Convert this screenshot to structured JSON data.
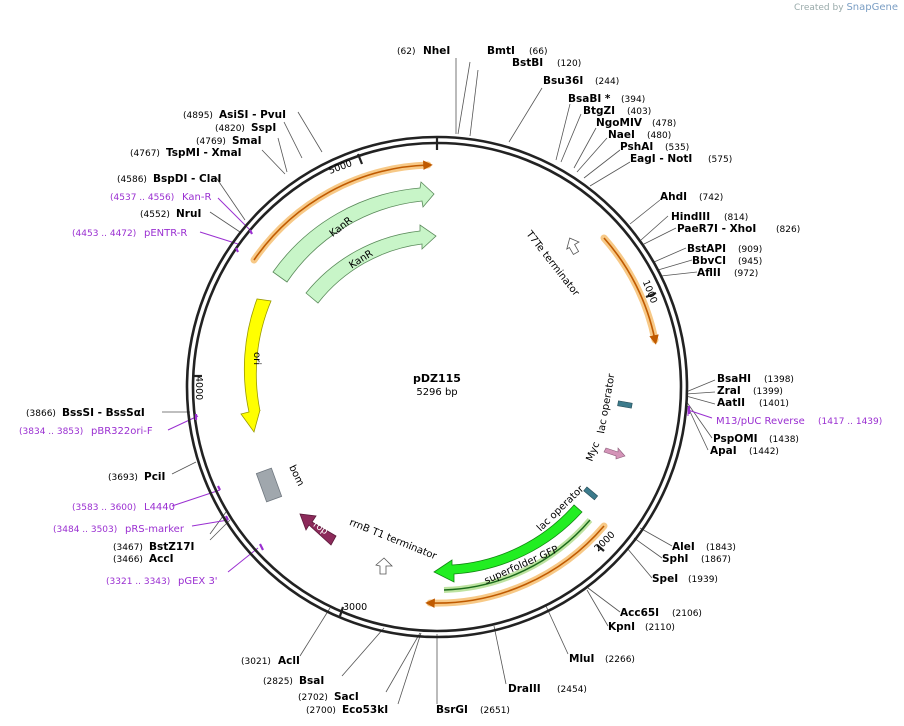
{
  "credit": {
    "prefix": "Created by",
    "brand": "SnapGene"
  },
  "plasmid": {
    "name": "pDZ115",
    "size": "5296 bp"
  },
  "ticks": [
    "1000",
    "2000",
    "3000",
    "4000",
    "5000"
  ],
  "enzymes": [
    {
      "name": "NheI",
      "pos": "(62)"
    },
    {
      "name": "BmtI",
      "pos": "(66)"
    },
    {
      "name": "BstBI",
      "pos": "(120)"
    },
    {
      "name": "Bsu36I",
      "pos": "(244)"
    },
    {
      "name": "BsaBI *",
      "pos": "(394)"
    },
    {
      "name": "BtgZI",
      "pos": "(403)"
    },
    {
      "name": "NgoMIV",
      "pos": "(478)"
    },
    {
      "name": "NaeI",
      "pos": "(480)"
    },
    {
      "name": "PshAI",
      "pos": "(535)"
    },
    {
      "name": "EagI - NotI",
      "pos": "(575)"
    },
    {
      "name": "AhdI",
      "pos": "(742)"
    },
    {
      "name": "HindIII",
      "pos": "(814)"
    },
    {
      "name": "PaeR7I - XhoI",
      "pos": "(826)"
    },
    {
      "name": "BstAPI",
      "pos": "(909)"
    },
    {
      "name": "BbvCI",
      "pos": "(945)"
    },
    {
      "name": "AflII",
      "pos": "(972)"
    },
    {
      "name": "BsaHI",
      "pos": "(1398)"
    },
    {
      "name": "ZraI",
      "pos": "(1399)"
    },
    {
      "name": "AatII",
      "pos": "(1401)"
    },
    {
      "name": "PspOMI",
      "pos": "(1438)"
    },
    {
      "name": "ApaI",
      "pos": "(1442)"
    },
    {
      "name": "AleI",
      "pos": "(1843)"
    },
    {
      "name": "SphI",
      "pos": "(1867)"
    },
    {
      "name": "SpeI",
      "pos": "(1939)"
    },
    {
      "name": "Acc65I",
      "pos": "(2106)"
    },
    {
      "name": "KpnI",
      "pos": "(2110)"
    },
    {
      "name": "MluI",
      "pos": "(2266)"
    },
    {
      "name": "DraIII",
      "pos": "(2454)"
    },
    {
      "name": "BsrGI",
      "pos": "(2651)"
    },
    {
      "name": "Eco53kI",
      "pos": "(2700)"
    },
    {
      "name": "SacI",
      "pos": "(2702)"
    },
    {
      "name": "BsaI",
      "pos": "(2825)"
    },
    {
      "name": "AclI",
      "pos": "(3021)"
    },
    {
      "name": "AccI",
      "pos": "(3466)"
    },
    {
      "name": "BstZ17I",
      "pos": "(3467)"
    },
    {
      "name": "PciI",
      "pos": "(3693)"
    },
    {
      "name": "BssSI - BssSαI",
      "pos": "(3866)"
    },
    {
      "name": "NruI",
      "pos": "(4552)"
    },
    {
      "name": "BspDI - ClaI",
      "pos": "(4586)"
    },
    {
      "name": "TspMI - XmaI",
      "pos": "(4767)"
    },
    {
      "name": "SmaI",
      "pos": "(4769)"
    },
    {
      "name": "SspI",
      "pos": "(4820)"
    },
    {
      "name": "AsiSI - PvuI",
      "pos": "(4895)"
    }
  ],
  "primers": [
    {
      "name": "M13/pUC Reverse",
      "range": "(1417 .. 1439)"
    },
    {
      "name": "pGEX 3'",
      "range": "(3321 .. 3343)"
    },
    {
      "name": "pRS-marker",
      "range": "(3484 .. 3503)"
    },
    {
      "name": "L4440",
      "range": "(3583 .. 3600)"
    },
    {
      "name": "pBR322ori-F",
      "range": "(3834 .. 3853)"
    },
    {
      "name": "pENTR-R",
      "range": "(4453 .. 4472)"
    },
    {
      "name": "Kan-R",
      "range": "(4537 .. 4556)"
    }
  ],
  "features": [
    {
      "name": "KanR",
      "color": "#c8f5c8"
    },
    {
      "name": "KanR",
      "color": "#c8f5c8"
    },
    {
      "name": "ori",
      "color": "#ffff00"
    },
    {
      "name": "bom",
      "color": "#a0a7ad"
    },
    {
      "name": "rop",
      "color": "#8c2a5a"
    },
    {
      "name": "rrnB T1 terminator",
      "color": "#ffffff"
    },
    {
      "name": "T7Te terminator",
      "color": "#ffffff"
    },
    {
      "name": "lac operator",
      "color": "#3c7b8c"
    },
    {
      "name": "Myc",
      "color": "#d494b8"
    },
    {
      "name": "lac operator",
      "color": "#3c7b8c"
    },
    {
      "name": "superfolder GFP",
      "color": "#22ee22"
    }
  ],
  "colors": {
    "backbone": "#222222",
    "primer": "#9a2fd1",
    "highlight": "#f7c987",
    "orf": "#e07b10"
  }
}
